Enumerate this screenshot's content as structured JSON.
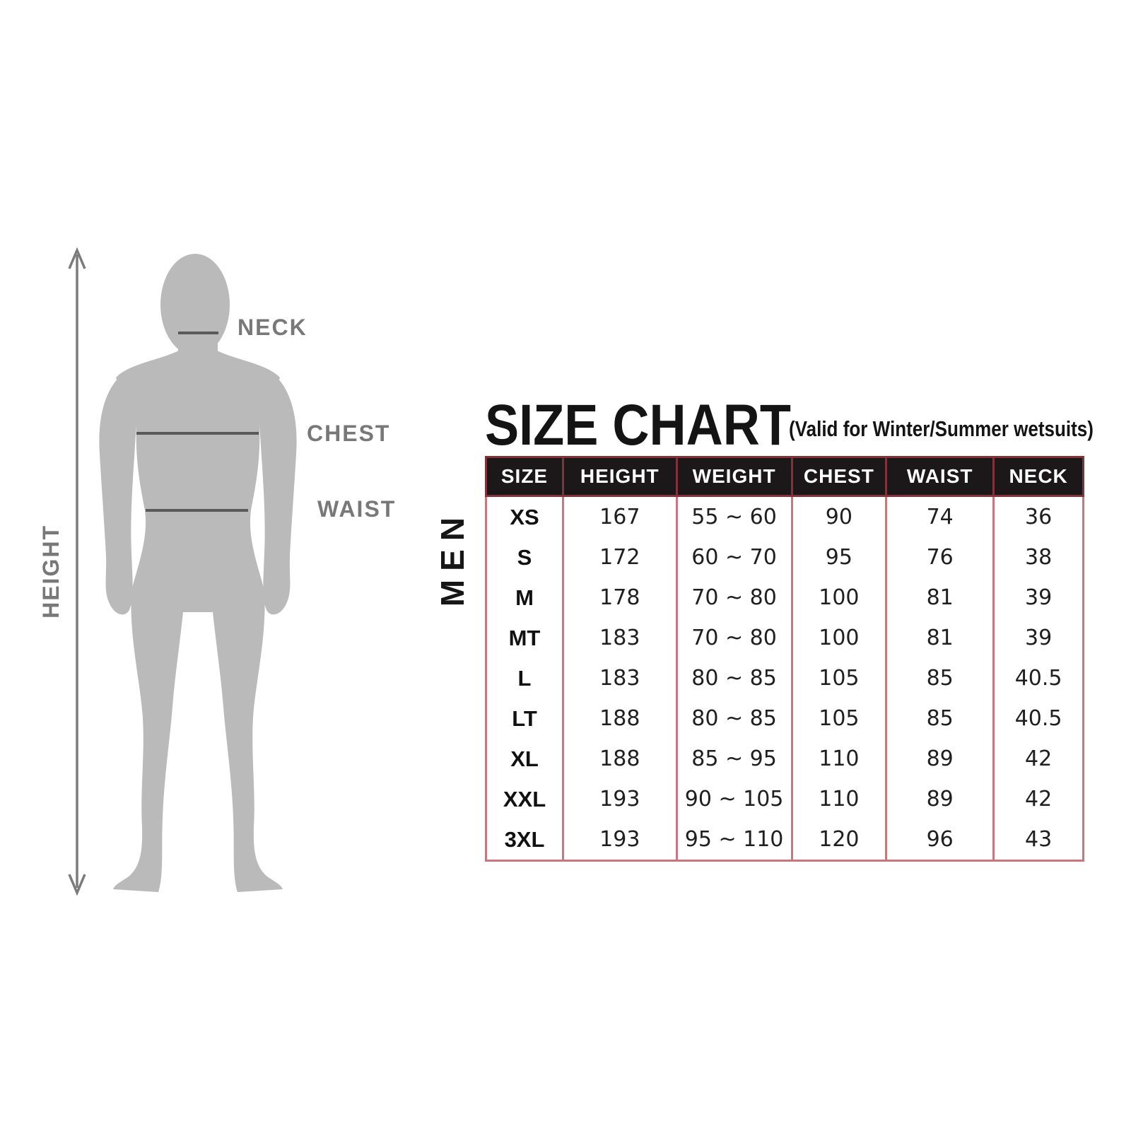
{
  "title": "SIZE CHART",
  "subtitle": "(Valid for Winter/Summer wetsuits)",
  "group_label": "MEN",
  "figure": {
    "neck_label": "NECK",
    "chest_label": "CHEST",
    "waist_label": "WAIST",
    "height_label": "HEIGHT"
  },
  "chart_data": {
    "type": "table",
    "title": "SIZE CHART",
    "note": "(Valid for Winter/Summer wetsuits)",
    "group": "MEN",
    "columns": [
      "SIZE",
      "HEIGHT",
      "WEIGHT",
      "CHEST",
      "WAIST",
      "NECK"
    ],
    "rows": [
      [
        "XS",
        "167",
        "55 ~ 60",
        "90",
        "74",
        "36"
      ],
      [
        "S",
        "172",
        "60 ~ 70",
        "95",
        "76",
        "38"
      ],
      [
        "M",
        "178",
        "70 ~ 80",
        "100",
        "81",
        "39"
      ],
      [
        "MT",
        "183",
        "70 ~ 80",
        "100",
        "81",
        "39"
      ],
      [
        "L",
        "183",
        "80 ~ 85",
        "105",
        "85",
        "40.5"
      ],
      [
        "LT",
        "188",
        "80 ~ 85",
        "105",
        "85",
        "40.5"
      ],
      [
        "XL",
        "188",
        "85 ~ 95",
        "110",
        "89",
        "42"
      ],
      [
        "XXL",
        "193",
        "90 ~ 105",
        "110",
        "89",
        "42"
      ],
      [
        "3XL",
        "193",
        "95 ~ 110",
        "120",
        "96",
        "43"
      ]
    ]
  },
  "colors": {
    "silhouette": "#b9bab9",
    "figure_line": "#5a5a5a",
    "figure_label": "#787878",
    "arrow": "#7b7b7b",
    "header_bg": "#1c1719",
    "header_text": "#ffffff",
    "grid": "#cb767e",
    "header_grid": "#823238",
    "text": "#1b1b1b"
  }
}
